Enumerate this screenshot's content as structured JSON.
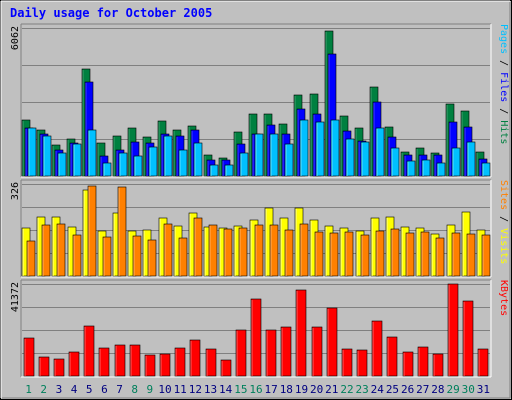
{
  "chart_data": [
    {
      "type": "bar",
      "title": "Daily usage for October 2005",
      "panel": "top",
      "ymax_label": "6062",
      "ylim": [
        0,
        6062
      ],
      "grid": true,
      "right_labels": [
        {
          "text": "Pages",
          "color": "#00c0ff"
        },
        {
          "text": " / ",
          "color": "#000000"
        },
        {
          "text": "Files",
          "color": "#0000ff"
        },
        {
          "text": " / ",
          "color": "#000000"
        },
        {
          "text": "Hits",
          "color": "#008040"
        }
      ],
      "categories": [
        "1",
        "2",
        "3",
        "4",
        "5",
        "6",
        "7",
        "8",
        "9",
        "10",
        "11",
        "12",
        "13",
        "14",
        "15",
        "16",
        "17",
        "18",
        "19",
        "20",
        "21",
        "22",
        "23",
        "24",
        "25",
        "26",
        "27",
        "28",
        "29",
        "30",
        "31"
      ],
      "series": [
        {
          "name": "Hits",
          "color": "#008040",
          "values": [
            2300,
            1900,
            1250,
            1500,
            4400,
            1350,
            1650,
            1950,
            1600,
            2250,
            1900,
            2050,
            850,
            750,
            1800,
            2550,
            2550,
            2150,
            3300,
            3350,
            5950,
            2450,
            1950,
            3650,
            2000,
            1000,
            1150,
            950,
            2950,
            2650,
            1000
          ]
        },
        {
          "name": "Files",
          "color": "#0000ff",
          "values": [
            1950,
            1700,
            1050,
            1350,
            3850,
            800,
            1050,
            1400,
            1350,
            1700,
            1650,
            1900,
            650,
            650,
            1300,
            1700,
            2100,
            1700,
            2750,
            2550,
            5000,
            1850,
            1450,
            3050,
            1600,
            850,
            850,
            850,
            2200,
            2000,
            700
          ]
        },
        {
          "name": "Pages",
          "color": "#00c0ff",
          "values": [
            1950,
            1650,
            950,
            1300,
            1900,
            550,
            950,
            800,
            1200,
            1650,
            1050,
            1350,
            450,
            450,
            950,
            1700,
            1700,
            1300,
            2300,
            2200,
            2300,
            1500,
            1400,
            1950,
            1150,
            600,
            650,
            550,
            1150,
            1400,
            550
          ]
        }
      ]
    },
    {
      "type": "bar",
      "panel": "middle",
      "ymax_label": "326",
      "ylim": [
        0,
        326
      ],
      "grid": true,
      "right_labels": [
        {
          "text": "Sites",
          "color": "#ff8000"
        },
        {
          "text": " / ",
          "color": "#000000"
        },
        {
          "text": "Visits",
          "color": "#ffff00"
        }
      ],
      "categories": [
        "1",
        "2",
        "3",
        "4",
        "5",
        "6",
        "7",
        "8",
        "9",
        "10",
        "11",
        "12",
        "13",
        "14",
        "15",
        "16",
        "17",
        "18",
        "19",
        "20",
        "21",
        "22",
        "23",
        "24",
        "25",
        "26",
        "27",
        "28",
        "29",
        "30",
        "31"
      ],
      "series": [
        {
          "name": "Visits",
          "color": "#ffff00",
          "values": [
            170,
            208,
            208,
            175,
            303,
            158,
            223,
            160,
            162,
            205,
            178,
            222,
            175,
            170,
            178,
            198,
            241,
            206,
            240,
            198,
            178,
            171,
            160,
            207,
            208,
            173,
            170,
            148,
            181,
            228,
            163
          ]
        },
        {
          "name": "Sites",
          "color": "#ff8000",
          "values": [
            124,
            180,
            183,
            146,
            318,
            138,
            316,
            140,
            128,
            185,
            135,
            204,
            180,
            165,
            170,
            180,
            180,
            162,
            183,
            157,
            153,
            155,
            145,
            160,
            167,
            154,
            155,
            135,
            152,
            150,
            145
          ]
        }
      ]
    },
    {
      "type": "bar",
      "panel": "bottom",
      "ymax_label": "41372",
      "ylim": [
        0,
        41372
      ],
      "grid": true,
      "right_labels": [
        {
          "text": "KBytes",
          "color": "#ff0000"
        }
      ],
      "categories": [
        "1",
        "2",
        "3",
        "4",
        "5",
        "6",
        "7",
        "8",
        "9",
        "10",
        "11",
        "12",
        "13",
        "14",
        "15",
        "16",
        "17",
        "18",
        "19",
        "20",
        "21",
        "22",
        "23",
        "24",
        "25",
        "26",
        "27",
        "28",
        "29",
        "30",
        "31"
      ],
      "series": [
        {
          "name": "KBytes",
          "color": "#ff0000",
          "values": [
            17300,
            8700,
            7600,
            10700,
            22400,
            12700,
            13900,
            13900,
            9500,
            10100,
            12700,
            16100,
            12300,
            7200,
            20500,
            34700,
            20600,
            22200,
            38800,
            21900,
            30700,
            12300,
            11700,
            24700,
            17600,
            10600,
            13200,
            10100,
            41300,
            33900,
            12300
          ]
        }
      ]
    }
  ],
  "x_axis": {
    "labels": [
      "1",
      "2",
      "3",
      "4",
      "5",
      "6",
      "7",
      "8",
      "9",
      "10",
      "11",
      "12",
      "13",
      "14",
      "15",
      "16",
      "17",
      "18",
      "19",
      "20",
      "21",
      "22",
      "23",
      "24",
      "25",
      "26",
      "27",
      "28",
      "29",
      "30",
      "31"
    ],
    "weekend": [
      1,
      2,
      8,
      9,
      15,
      16,
      22,
      23,
      29,
      30
    ],
    "weekend_color": "#00805c",
    "weekday_color": "#000080"
  }
}
